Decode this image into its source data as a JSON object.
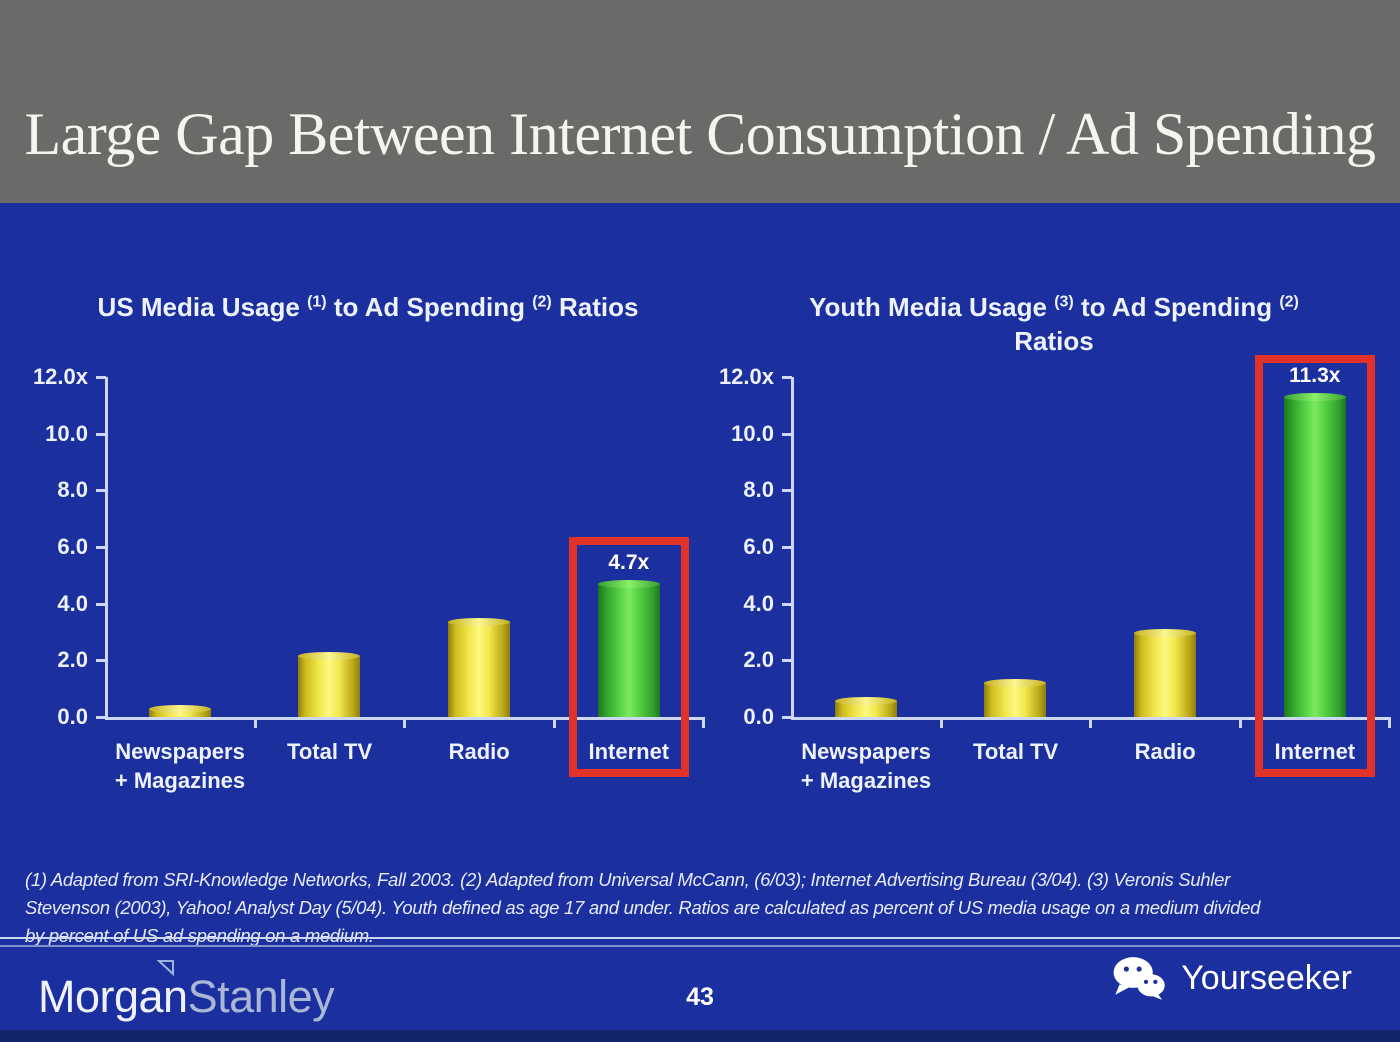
{
  "slide": {
    "title": "Large Gap Between Internet Consumption / Ad Spending"
  },
  "colors": {
    "background_blue": "#1b2f9e",
    "header_gray": "#6a6a69",
    "bar_yellow": "#f3e84e",
    "bar_green": "#55d144",
    "highlight_red": "#e13229",
    "axis_light": "#ccd8f4",
    "bottom_strip_blue": "#13246b"
  },
  "chart_data": [
    {
      "type": "bar",
      "title_segments": [
        {
          "text": "US Media Usage "
        },
        {
          "sup": "(1)"
        },
        {
          "text": " to Ad Spending "
        },
        {
          "sup": "(2)"
        },
        {
          "text": " Ratios"
        }
      ],
      "categories": [
        [
          "Newspapers",
          "+ Magazines"
        ],
        [
          "Total TV"
        ],
        [
          "Radio"
        ],
        [
          "Internet"
        ]
      ],
      "values": [
        0.3,
        2.15,
        3.35,
        4.7
      ],
      "bar_labels": [
        "",
        "",
        "",
        "4.7x"
      ],
      "bar_colors": [
        "yellow",
        "yellow",
        "yellow",
        "green"
      ],
      "highlight": {
        "index": 3,
        "box_top_value": 6.35
      },
      "ylim": [
        0,
        12
      ],
      "yticks": [
        {
          "value": 12,
          "label": "12.0x"
        },
        {
          "value": 10,
          "label": "10.0"
        },
        {
          "value": 8,
          "label": "8.0"
        },
        {
          "value": 6,
          "label": "6.0"
        },
        {
          "value": 4,
          "label": "4.0"
        },
        {
          "value": 2,
          "label": "2.0"
        },
        {
          "value": 0,
          "label": "0.0"
        }
      ]
    },
    {
      "type": "bar",
      "title_segments": [
        {
          "text": "Youth Media Usage "
        },
        {
          "sup": "(3)"
        },
        {
          "text": " to Ad Spending "
        },
        {
          "sup": "(2)"
        },
        {
          "br": true
        },
        {
          "text": "Ratios"
        }
      ],
      "categories": [
        [
          "Newspapers",
          "+ Magazines"
        ],
        [
          "Total TV"
        ],
        [
          "Radio"
        ],
        [
          "Internet"
        ]
      ],
      "values": [
        0.55,
        1.2,
        2.95,
        11.3
      ],
      "bar_labels": [
        "",
        "",
        "",
        "11.3x"
      ],
      "bar_colors": [
        "yellow",
        "yellow",
        "yellow",
        "green"
      ],
      "highlight": {
        "index": 3,
        "box_top_value": 12.78
      },
      "ylim": [
        0,
        12
      ],
      "yticks": [
        {
          "value": 12,
          "label": "12.0x"
        },
        {
          "value": 10,
          "label": "10.0"
        },
        {
          "value": 8,
          "label": "8.0"
        },
        {
          "value": 6,
          "label": "6.0"
        },
        {
          "value": 4,
          "label": "4.0"
        },
        {
          "value": 2,
          "label": "2.0"
        },
        {
          "value": 0,
          "label": "0.0"
        }
      ]
    }
  ],
  "footnote": {
    "lines": [
      "(1) Adapted from SRI-Knowledge Networks, Fall 2003.  (2) Adapted from Universal McCann, (6/03); Internet Advertising Bureau (3/04). (3) Veronis Suhler",
      "Stevenson (2003), Yahoo! Analyst Day (5/04).  Youth defined as age 17 and under.  Ratios are calculated as percent of US media usage on a medium divided",
      "by percent of US ad spending on a medium."
    ]
  },
  "footer": {
    "page_number": "43",
    "brand": {
      "morgan": "Morgan",
      "stanley": "Stanley"
    },
    "watermark_label": "Yourseeker"
  }
}
